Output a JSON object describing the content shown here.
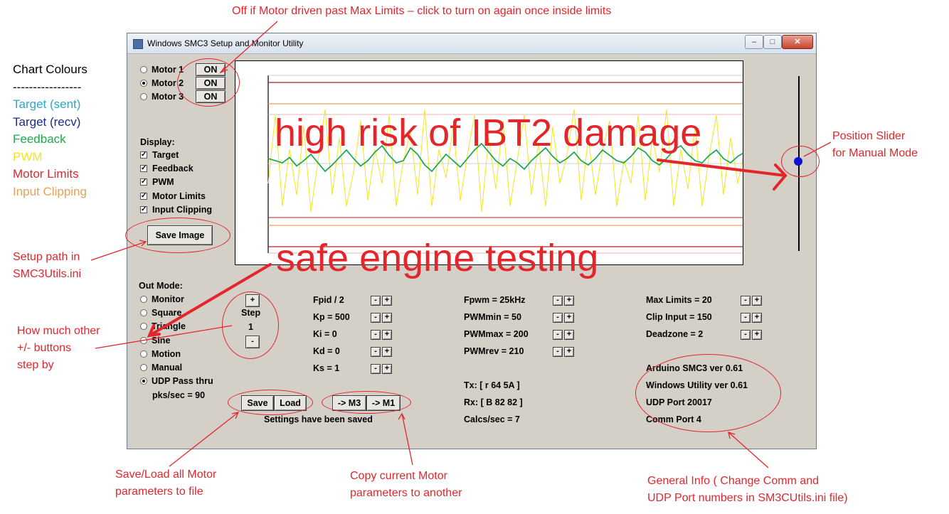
{
  "annotations": {
    "top_note": "Off if Motor driven past Max Limits – click to turn on again once inside limits",
    "position_slider_note_1": "Position Slider",
    "position_slider_note_2": "for Manual Mode",
    "setup_path_note_1": "Setup path in",
    "setup_path_note_2": "SMC3Utils.ini",
    "step_note_1": "How much other",
    "step_note_2": "+/- buttons",
    "step_note_3": "step by",
    "save_load_note_1": "Save/Load all Motor",
    "save_load_note_2": "parameters to file",
    "copy_note_1": "Copy current Motor",
    "copy_note_2": "parameters to another",
    "general_info_note_1": "General Info ( Change Comm and",
    "general_info_note_2": "UDP Port numbers in SM3CUtils.ini file)",
    "overlay_high_risk": "high risk of IBT2 damage",
    "overlay_safe": "safe engine testing"
  },
  "legend": {
    "title": "Chart Colours",
    "divider": "-----------------",
    "items": [
      {
        "label": "Target (sent)",
        "color": "#2aa9c9"
      },
      {
        "label": "Target (recv)",
        "color": "#1b2a8c"
      },
      {
        "label": "Feedback",
        "color": "#1fa84a"
      },
      {
        "label": "PWM",
        "color": "#f2e61c"
      },
      {
        "label": "Motor Limits",
        "color": "#e3262c"
      },
      {
        "label": "Input Clipping",
        "color": "#e8a25a"
      }
    ]
  },
  "window": {
    "title": "Windows SMC3 Setup and Monitor Utility",
    "minimize": "–",
    "maximize": "□",
    "close": "✕"
  },
  "motors": [
    {
      "label": "Motor 1",
      "button": "ON",
      "selected": false
    },
    {
      "label": "Motor 2",
      "button": "ON",
      "selected": true
    },
    {
      "label": "Motor 3",
      "button": "ON",
      "selected": false
    }
  ],
  "display": {
    "heading": "Display:",
    "check_mark": "✓",
    "items": [
      "Target",
      "Feedback",
      "PWM",
      "Motor Limits",
      "Input Clipping"
    ]
  },
  "save_image": "Save Image",
  "out_mode": {
    "heading": "Out Mode:",
    "items": [
      "Monitor",
      "Square",
      "Triangle",
      "Sine",
      "Motion",
      "Manual",
      "UDP Pass thru"
    ],
    "selected": "UDP Pass thru",
    "pks_sec": "pks/sec = 90"
  },
  "step": {
    "plus": "+",
    "label": "Step",
    "value": "1",
    "minus": "-"
  },
  "params_col1": [
    "Fpid / 2",
    "Kp = 500",
    "Ki = 0",
    "Kd = 0",
    "Ks = 1"
  ],
  "params_col2": [
    "Fpwm = 25kHz",
    "PWMmin = 50",
    "PWMmax = 200",
    "PWMrev = 210"
  ],
  "params_col3": [
    "Max Limits = 20",
    "Clip Input = 150",
    "Deadzone = 2"
  ],
  "pm": {
    "minus": "-",
    "plus": "+"
  },
  "comm": {
    "tx": "Tx: [ r 64 5A ]",
    "rx": "Rx: [ B 82 82 ]",
    "calcs": "Calcs/sec = 7"
  },
  "info": [
    "Arduino SMC3 ver 0.61",
    "Windows Utility ver 0.61",
    "UDP Port 20017",
    "Comm Port 4"
  ],
  "file_buttons": {
    "save": "Save",
    "load": "Load",
    "to_m3": "-> M3",
    "to_m1": "-> M1"
  },
  "status": "Settings have been saved",
  "chart_data": {
    "type": "line",
    "series": [
      {
        "values": [
          0.62,
          0.6,
          0.58,
          0.63,
          0.55,
          0.6,
          0.66,
          0.58,
          0.5,
          0.56,
          0.63,
          0.7,
          0.62,
          0.55,
          0.6,
          0.68,
          0.74,
          0.65,
          0.58,
          0.6,
          0.72,
          0.66,
          0.56,
          0.5,
          0.58,
          0.66,
          0.6,
          0.54,
          0.62,
          0.7,
          0.76,
          0.68,
          0.6,
          0.55,
          0.62,
          0.58,
          0.52,
          0.6,
          0.66,
          0.72,
          0.64,
          0.58,
          0.62,
          0.68,
          0.6,
          0.56,
          0.62,
          0.7,
          0.65,
          0.6,
          0.58,
          0.64,
          0.72,
          0.68,
          0.6,
          0.56,
          0.62,
          0.7,
          0.74,
          0.66,
          0.6,
          0.58,
          0.65,
          0.7,
          0.62,
          0.58,
          0.64,
          0.68
        ],
        "color": "#1fa84a"
      },
      {
        "values": [
          0.62,
          0.6,
          0.58,
          0.63,
          0.55,
          0.6,
          0.66,
          0.58,
          0.5,
          0.56,
          0.63,
          0.7,
          0.62,
          0.55,
          0.6,
          0.68,
          0.74,
          0.65,
          0.58,
          0.6,
          0.72,
          0.66,
          0.56,
          0.5,
          0.58,
          0.66,
          0.6,
          0.54,
          0.62,
          0.7,
          0.76,
          0.68,
          0.6,
          0.55,
          0.62,
          0.58,
          0.52,
          0.6,
          0.66,
          0.72,
          0.64,
          0.58,
          0.62,
          0.68,
          0.6,
          0.56,
          0.62,
          0.7,
          0.65,
          0.6,
          0.58,
          0.64,
          0.72,
          0.68,
          0.6,
          0.56,
          0.62,
          0.7,
          0.74,
          0.66,
          0.6,
          0.58,
          0.65,
          0.7,
          0.62,
          0.58,
          0.64,
          0.68
        ],
        "color": "#2aa9c9"
      },
      {
        "values": [
          0.3,
          0.9,
          0.1,
          0.6,
          0.2,
          0.8,
          0.05,
          0.5,
          0.95,
          0.2,
          0.7,
          0.1,
          0.4,
          0.85,
          0.15,
          0.6,
          0.3,
          0.9,
          0.1,
          0.5,
          0.75,
          0.2,
          0.95,
          0.1,
          0.6,
          0.35,
          0.8,
          0.15,
          0.55,
          0.9,
          0.05,
          0.7,
          0.25,
          0.85,
          0.1,
          0.5,
          0.9,
          0.2,
          0.65,
          0.1,
          0.8,
          0.3,
          0.55,
          0.95,
          0.15,
          0.7,
          0.2,
          0.6,
          0.85,
          0.1,
          0.5,
          0.3,
          0.9,
          0.15,
          0.7,
          0.4,
          0.95,
          0.1,
          0.6,
          0.25,
          0.8,
          0.1,
          0.55,
          0.9,
          0.2,
          0.7,
          0.3,
          0.6
        ],
        "color": "#f2e61c"
      }
    ]
  }
}
